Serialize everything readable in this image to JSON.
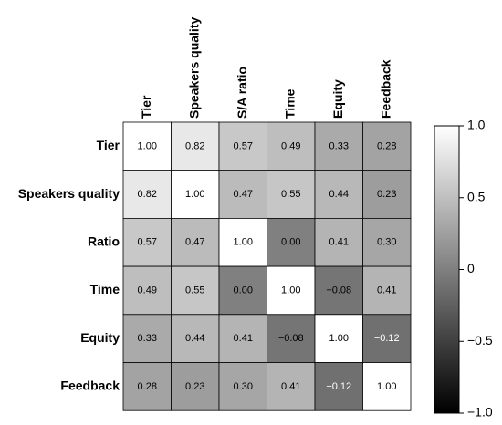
{
  "chart_data": {
    "type": "heatmap",
    "x_categories": [
      "Tier",
      "Speakers quality",
      "S/A ratio",
      "Time",
      "Equity",
      "Feedback"
    ],
    "y_categories": [
      "Tier",
      "Speakers quality",
      "Ratio",
      "Time",
      "Equity",
      "Feedback"
    ],
    "values": [
      [
        1,
        0.82,
        0.57,
        0.49,
        0.33,
        0.28
      ],
      [
        0.82,
        1,
        0.47,
        0.55,
        0.44,
        0.23
      ],
      [
        0.57,
        0.47,
        1,
        0,
        0.41,
        0.3
      ],
      [
        0.49,
        0.55,
        0,
        1,
        -0.08,
        0.41
      ],
      [
        0.33,
        0.44,
        0.41,
        -0.08,
        1,
        -0.12
      ],
      [
        0.28,
        0.23,
        0.3,
        0.41,
        -0.12,
        1
      ]
    ],
    "value_labels": [
      [
        "1.00",
        "0.82",
        "0.57",
        "0.49",
        "0.33",
        "0.28"
      ],
      [
        "0.82",
        "1.00",
        "0.47",
        "0.55",
        "0.44",
        "0.23"
      ],
      [
        "0.57",
        "0.47",
        "1.00",
        "0.00",
        "0.41",
        "0.30"
      ],
      [
        "0.49",
        "0.55",
        "0.00",
        "1.00",
        "−0.08",
        "0.41"
      ],
      [
        "0.33",
        "0.44",
        "0.41",
        "−0.08",
        "1.00",
        "−0.12"
      ],
      [
        "0.28",
        "0.23",
        "0.30",
        "0.41",
        "−0.12",
        "1.00"
      ]
    ],
    "colorbar": {
      "ylim": [
        -1,
        1
      ],
      "yticks": [
        {
          "value": 1,
          "label": "1.0"
        },
        0.5,
        0,
        {
          "value": -0.5,
          "label": "−0.5"
        },
        {
          "value": -1,
          "label": "−1.0"
        }
      ]
    }
  }
}
